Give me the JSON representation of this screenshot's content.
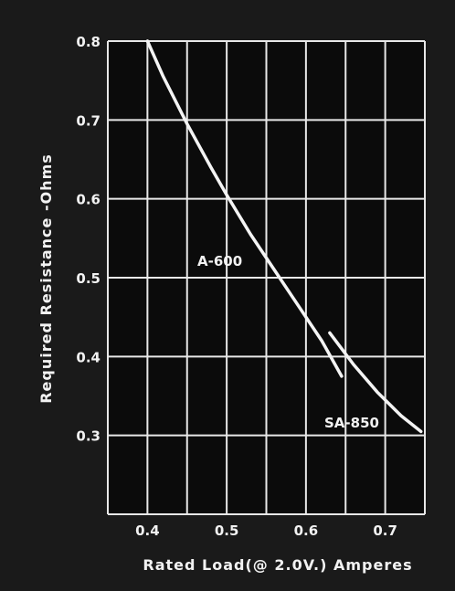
{
  "chart_data": {
    "type": "line",
    "xlabel": "Rated Load(@ 2.0V.) Amperes",
    "ylabel": "Required Resistance -Ohms",
    "xlim": [
      0.35,
      0.75
    ],
    "ylim": [
      0.2,
      0.8
    ],
    "x_ticks": [
      "0.4",
      "0.5",
      "0.6",
      "0.7"
    ],
    "y_ticks": [
      "0.8",
      "0.7",
      "0.6",
      "0.5",
      "0.4",
      "0.3"
    ],
    "grid": true,
    "series": [
      {
        "name": "A-600",
        "points": [
          {
            "x": 0.4,
            "y": 0.8
          },
          {
            "x": 0.42,
            "y": 0.755
          },
          {
            "x": 0.45,
            "y": 0.695
          },
          {
            "x": 0.48,
            "y": 0.64
          },
          {
            "x": 0.5,
            "y": 0.605
          },
          {
            "x": 0.53,
            "y": 0.555
          },
          {
            "x": 0.56,
            "y": 0.51
          },
          {
            "x": 0.59,
            "y": 0.465
          },
          {
            "x": 0.62,
            "y": 0.42
          },
          {
            "x": 0.645,
            "y": 0.375
          }
        ]
      },
      {
        "name": "SA-850",
        "points": [
          {
            "x": 0.63,
            "y": 0.43
          },
          {
            "x": 0.66,
            "y": 0.39
          },
          {
            "x": 0.69,
            "y": 0.355
          },
          {
            "x": 0.72,
            "y": 0.325
          },
          {
            "x": 0.745,
            "y": 0.305
          }
        ]
      }
    ],
    "annotations": [
      "A-600",
      "SA-850"
    ]
  }
}
